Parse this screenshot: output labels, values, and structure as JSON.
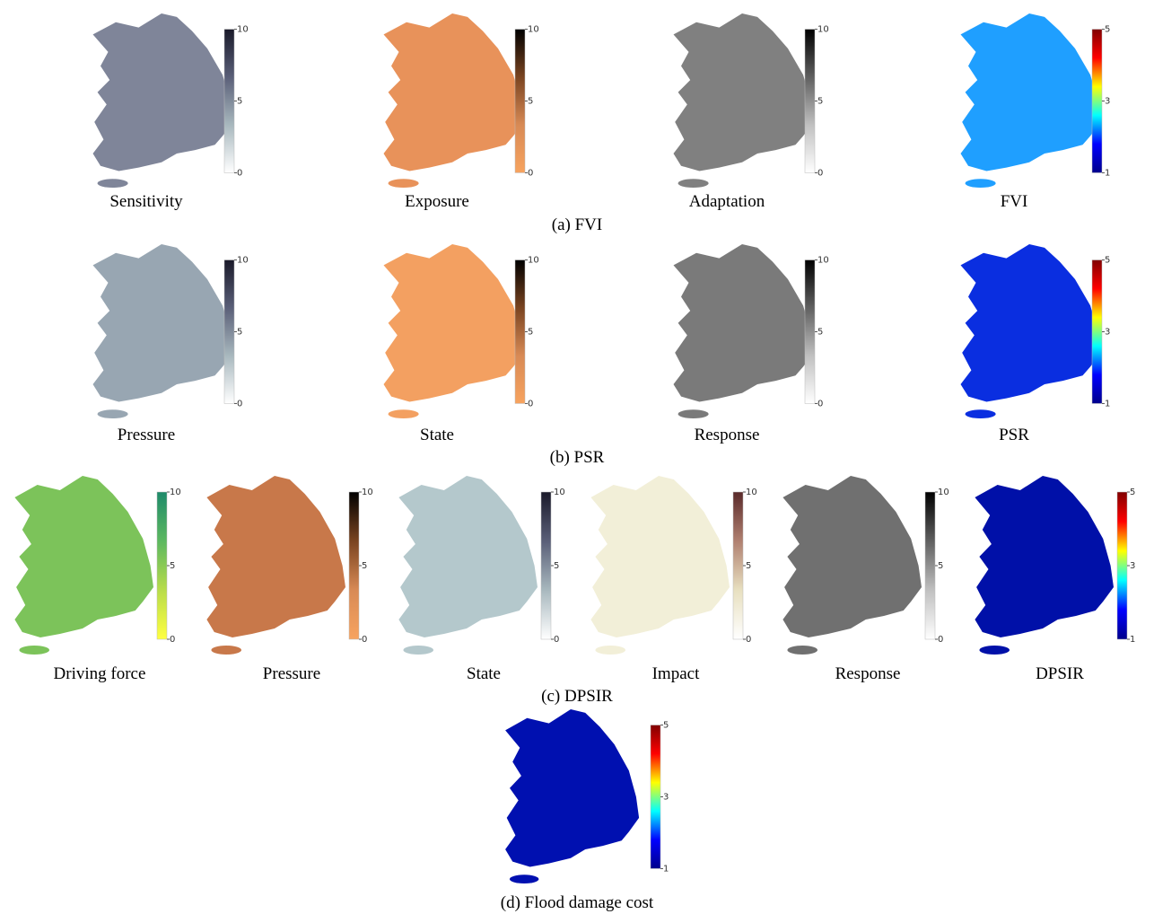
{
  "rows": [
    {
      "caption": "(a) FVI",
      "panels": [
        {
          "label": "Sensitivity",
          "ticks": [
            10,
            5,
            0
          ],
          "fill": "#7f8599",
          "colors": [
            "#1a1a2a",
            "#5a5f78",
            "#a8b8be",
            "#ffffff"
          ]
        },
        {
          "label": "Exposure",
          "ticks": [
            10,
            5,
            0
          ],
          "fill": "#e8925a",
          "colors": [
            "#000000",
            "#7a4420",
            "#d88a55",
            "#f7a35f"
          ]
        },
        {
          "label": "Adaptation",
          "ticks": [
            10,
            5,
            0
          ],
          "fill": "#808080",
          "colors": [
            "#000000",
            "#606060",
            "#c0c0c0",
            "#ffffff"
          ]
        },
        {
          "label": "FVI",
          "ticks": [
            5,
            3,
            1
          ],
          "fill": "#1f9fff",
          "colors": [
            "#800000",
            "#ff0000",
            "#ffff00",
            "#00ffff",
            "#0000ff",
            "#00008b"
          ]
        }
      ]
    },
    {
      "caption": "(b) PSR",
      "panels": [
        {
          "label": "Pressure",
          "ticks": [
            10,
            5,
            0
          ],
          "fill": "#98a6b2",
          "colors": [
            "#1a1a2a",
            "#5a5f78",
            "#a8b8be",
            "#ffffff"
          ]
        },
        {
          "label": "State",
          "ticks": [
            10,
            5,
            0
          ],
          "fill": "#f3a061",
          "colors": [
            "#000000",
            "#7a4420",
            "#d88a55",
            "#f7a35f"
          ]
        },
        {
          "label": "Response",
          "ticks": [
            10,
            5,
            0
          ],
          "fill": "#7a7a7a",
          "colors": [
            "#000000",
            "#606060",
            "#c0c0c0",
            "#ffffff"
          ]
        },
        {
          "label": "PSR",
          "ticks": [
            5,
            3,
            1
          ],
          "fill": "#0a2ee0",
          "colors": [
            "#800000",
            "#ff0000",
            "#ffff00",
            "#00ffff",
            "#0000ff",
            "#00008b"
          ]
        }
      ]
    },
    {
      "caption": "(c) DPSIR",
      "panels": [
        {
          "label": "Driving force",
          "ticks": [
            10,
            5,
            0
          ],
          "fill": "#7cc35a",
          "colors": [
            "#1e8a6a",
            "#5cb860",
            "#b8dc4a",
            "#ffff40"
          ]
        },
        {
          "label": "Pressure",
          "ticks": [
            10,
            5,
            0
          ],
          "fill": "#c8784a",
          "colors": [
            "#000000",
            "#7a4420",
            "#d88a55",
            "#f7a35f"
          ]
        },
        {
          "label": "State",
          "ticks": [
            10,
            5,
            0
          ],
          "fill": "#b4c8cc",
          "colors": [
            "#1a1a2a",
            "#5a5f78",
            "#a8b8be",
            "#ffffff"
          ]
        },
        {
          "label": "Impact",
          "ticks": [
            10,
            5,
            0
          ],
          "fill": "#f2efd8",
          "colors": [
            "#5a2a2a",
            "#b08070",
            "#e8e0c0",
            "#ffffff"
          ]
        },
        {
          "label": "Response",
          "ticks": [
            10,
            5,
            0
          ],
          "fill": "#707070",
          "colors": [
            "#000000",
            "#606060",
            "#c0c0c0",
            "#ffffff"
          ]
        },
        {
          "label": "DPSIR",
          "ticks": [
            5,
            3,
            1
          ],
          "fill": "#0010a8",
          "colors": [
            "#800000",
            "#ff0000",
            "#ffff00",
            "#00ffff",
            "#0000ff",
            "#00008b"
          ]
        }
      ]
    },
    {
      "caption": "(d) Flood damage cost",
      "panels": [
        {
          "ticks": [
            5,
            3,
            1
          ],
          "fill": "#0010b0",
          "colors": [
            "#800000",
            "#ff0000",
            "#ffff00",
            "#00ffff",
            "#0000ff",
            "#00008b"
          ]
        }
      ]
    }
  ]
}
